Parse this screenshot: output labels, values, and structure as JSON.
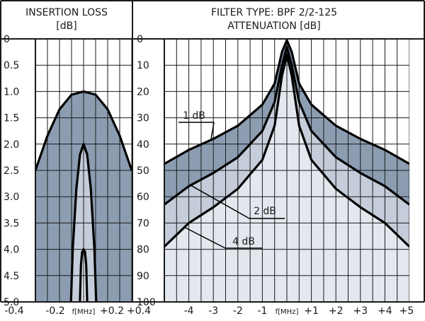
{
  "chart_data": [
    {
      "type": "area",
      "header": [
        "INSERTION LOSS",
        "[dB]"
      ],
      "ylabel": "[dB]",
      "xlabel": "f[MHz]",
      "y_ticks": [
        "0",
        "0.5",
        "1.0",
        "1.5",
        "2.0",
        "2.5",
        "3.0",
        "3.5",
        "4.0",
        "4.5",
        "5.0"
      ],
      "ylim": [
        0,
        5.0
      ],
      "y_inverted": true,
      "x_ticks": [
        "-0.4",
        "-0.2",
        "f[MHz]",
        "+0.2",
        "+0.4"
      ],
      "xlim": [
        -0.4,
        0.4
      ],
      "grid": true,
      "curves": [
        {
          "name": "1 dB",
          "points": [
            [
              -0.4,
              2.5
            ],
            [
              -0.3,
              1.84
            ],
            [
              -0.2,
              1.34
            ],
            [
              -0.1,
              1.06
            ],
            [
              0,
              1.0
            ],
            [
              0.1,
              1.06
            ],
            [
              0.2,
              1.34
            ],
            [
              0.3,
              1.84
            ],
            [
              0.4,
              2.5
            ]
          ]
        },
        {
          "name": "2 dB",
          "points": [
            [
              -0.105,
              5.0
            ],
            [
              -0.09,
              4.0
            ],
            [
              -0.06,
              2.85
            ],
            [
              -0.03,
              2.2
            ],
            [
              0,
              2.0
            ],
            [
              0.03,
              2.2
            ],
            [
              0.06,
              2.85
            ],
            [
              0.09,
              4.0
            ],
            [
              0.105,
              5.0
            ]
          ]
        },
        {
          "name": "4 dB",
          "points": [
            [
              -0.03,
              5.0
            ],
            [
              -0.022,
              4.3
            ],
            [
              -0.012,
              4.05
            ],
            [
              0,
              4.0
            ],
            [
              0.012,
              4.05
            ],
            [
              0.022,
              4.3
            ],
            [
              0.03,
              5.0
            ]
          ]
        }
      ]
    },
    {
      "type": "area",
      "header": [
        "FILTER TYPE: BPF 2/2-125",
        "ATTENUATION [dB]"
      ],
      "ylabel": "ATTENUATION [dB]",
      "xlabel": "f[MHz]",
      "y_ticks": [
        "0",
        "10",
        "20",
        "30",
        "40",
        "50",
        "60",
        "70",
        "80",
        "90",
        "100"
      ],
      "ylim": [
        0,
        100
      ],
      "y_inverted": true,
      "x_ticks": [
        "-4",
        "-3",
        "-2",
        "-1",
        "f[MHz]",
        "+1",
        "+2",
        "+3",
        "+4",
        "+5"
      ],
      "xlim": [
        -5,
        5
      ],
      "grid": true,
      "curves": [
        {
          "name": "1 dB",
          "points": [
            [
              -5,
              47.5
            ],
            [
              -4,
              42.2
            ],
            [
              -3,
              38.0
            ],
            [
              -2,
              33.0
            ],
            [
              -1,
              25.0
            ],
            [
              -0.5,
              17.0
            ],
            [
              -0.2,
              5.0
            ],
            [
              0,
              0.5
            ],
            [
              0.2,
              5.0
            ],
            [
              0.5,
              17.0
            ],
            [
              1,
              25.0
            ],
            [
              2,
              33.0
            ],
            [
              3,
              38.0
            ],
            [
              4,
              42.2
            ],
            [
              5,
              47.5
            ]
          ]
        },
        {
          "name": "2 dB",
          "points": [
            [
              -5,
              63.0
            ],
            [
              -4,
              56.0
            ],
            [
              -3,
              51.0
            ],
            [
              -2,
              45.0
            ],
            [
              -1,
              35.0
            ],
            [
              -0.5,
              24.0
            ],
            [
              -0.2,
              10.0
            ],
            [
              0,
              3.0
            ],
            [
              0.2,
              10.0
            ],
            [
              0.5,
              24.0
            ],
            [
              1,
              35.0
            ],
            [
              2,
              45.0
            ],
            [
              3,
              51.0
            ],
            [
              4,
              56.0
            ],
            [
              5,
              63.0
            ]
          ]
        },
        {
          "name": "4 dB",
          "points": [
            [
              -5,
              79.0
            ],
            [
              -4,
              70.0
            ],
            [
              -3,
              64.0
            ],
            [
              -2,
              57.0
            ],
            [
              -1,
              46.0
            ],
            [
              -0.5,
              33.0
            ],
            [
              -0.2,
              14.0
            ],
            [
              0,
              6.0
            ],
            [
              0.2,
              14.0
            ],
            [
              0.5,
              33.0
            ],
            [
              1,
              46.0
            ],
            [
              2,
              57.0
            ],
            [
              3,
              64.0
            ],
            [
              4,
              70.0
            ],
            [
              5,
              79.0
            ]
          ]
        }
      ],
      "annotations": [
        "1 dB",
        "2 dB",
        "4 dB"
      ]
    }
  ],
  "colors": {
    "band_dark": "#8c9db2",
    "band_mid": "#c4cdd9",
    "band_light": "#e3e8ef",
    "grid": "#1a1a1a",
    "curve": "#000000"
  }
}
